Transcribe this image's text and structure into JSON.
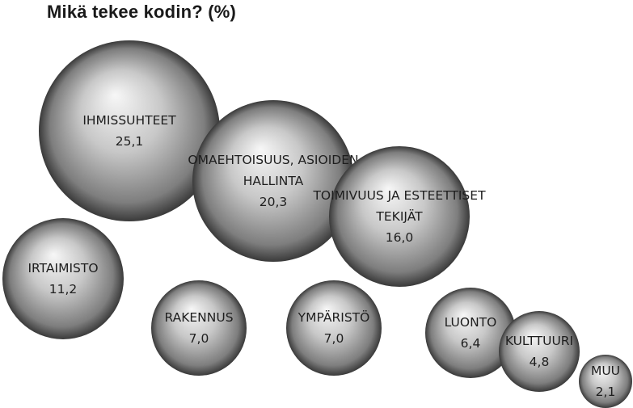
{
  "chart_data": {
    "type": "bubble",
    "title": "Mikä tekee kodin? (%)",
    "series": [
      {
        "label": "IHMISSUHTEET",
        "value": "25,1",
        "num": 25.1
      },
      {
        "label": "OMAEHTOISUUS, ASIOIDEN HALLINTA",
        "value": "20,3",
        "num": 20.3
      },
      {
        "label": "TOIMIVUUS JA ESTEETTISET TEKIJÄT",
        "value": "16,0",
        "num": 16.0
      },
      {
        "label": "IRTAIMISTO",
        "value": "11,2",
        "num": 11.2
      },
      {
        "label": "RAKENNUS",
        "value": "7,0",
        "num": 7.0
      },
      {
        "label": "YMPÄRISTÖ",
        "value": "7,0",
        "num": 7.0
      },
      {
        "label": "LUONTO",
        "value": "6,4",
        "num": 6.4
      },
      {
        "label": "KULTTUURI",
        "value": "4,8",
        "num": 4.8
      },
      {
        "label": "MUU",
        "value": "2,1",
        "num": 2.1
      }
    ],
    "colors": {
      "sphere_light": "#f7f7f7",
      "sphere_mid": "#a9a9a9",
      "sphere_dark": "#3a3a3a",
      "text": "#1e1e1e"
    }
  }
}
